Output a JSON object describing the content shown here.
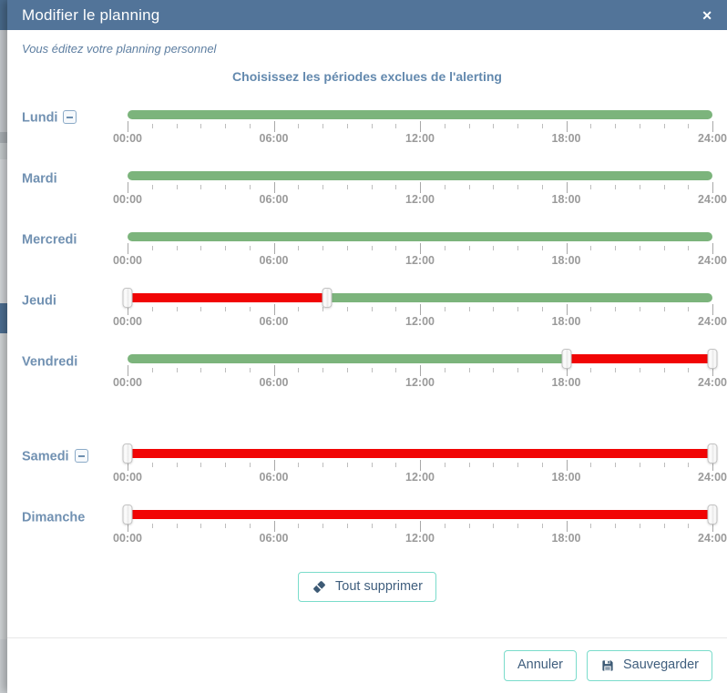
{
  "modal": {
    "title": "Modifier le planning",
    "close_icon": "✕",
    "subtitle": "Vous éditez votre planning personnel",
    "section_title": "Choisissez les périodes exclues de l'alerting"
  },
  "slider": {
    "axis_start_hour": 0,
    "axis_end_hour": 24,
    "minor_tick_every_hours": 1,
    "major_tick_every_hours": 6,
    "tick_labels": [
      "00:00",
      "06:00",
      "12:00",
      "18:00",
      "24:00"
    ]
  },
  "days": [
    {
      "label": "Lundi",
      "has_collapse_icon": true,
      "gap_before": false,
      "segments": [
        {
          "color": "green",
          "from_hour": 0,
          "to_hour": 24
        }
      ],
      "handle_hours": []
    },
    {
      "label": "Mardi",
      "has_collapse_icon": false,
      "gap_before": false,
      "segments": [
        {
          "color": "green",
          "from_hour": 0,
          "to_hour": 24
        }
      ],
      "handle_hours": []
    },
    {
      "label": "Mercredi",
      "has_collapse_icon": false,
      "gap_before": false,
      "segments": [
        {
          "color": "green",
          "from_hour": 0,
          "to_hour": 24
        }
      ],
      "handle_hours": []
    },
    {
      "label": "Jeudi",
      "has_collapse_icon": false,
      "gap_before": false,
      "segments": [
        {
          "color": "red",
          "from_hour": 0,
          "to_hour": 8.2
        },
        {
          "color": "green",
          "from_hour": 8.2,
          "to_hour": 24
        }
      ],
      "handle_hours": [
        0,
        8.2
      ]
    },
    {
      "label": "Vendredi",
      "has_collapse_icon": false,
      "gap_before": false,
      "segments": [
        {
          "color": "green",
          "from_hour": 0,
          "to_hour": 18
        },
        {
          "color": "red",
          "from_hour": 18,
          "to_hour": 24
        }
      ],
      "handle_hours": [
        18,
        24
      ]
    },
    {
      "label": "Samedi",
      "has_collapse_icon": true,
      "gap_before": true,
      "segments": [
        {
          "color": "red",
          "from_hour": 0,
          "to_hour": 24
        }
      ],
      "handle_hours": [
        0,
        24
      ]
    },
    {
      "label": "Dimanche",
      "has_collapse_icon": false,
      "gap_before": false,
      "segments": [
        {
          "color": "red",
          "from_hour": 0,
          "to_hour": 24
        }
      ],
      "handle_hours": [
        0,
        24
      ]
    }
  ],
  "actions": {
    "delete_all_label": "Tout supprimer"
  },
  "footer": {
    "cancel_label": "Annuler",
    "save_label": "Sauvegarder"
  },
  "icons": {
    "delete_all": "eraser-icon",
    "save": "floppy-disk-icon",
    "close": "close-x-icon",
    "collapse": "minus-square-icon"
  },
  "colors": {
    "header_bg": "#527499",
    "green": "#7cb47c",
    "red": "#f10505",
    "teal_border": "#7adccb",
    "button_text": "#3f5e7d",
    "day_label": "#7191b2",
    "time_label": "#9a9a9a",
    "section_title": "#6389ae"
  }
}
